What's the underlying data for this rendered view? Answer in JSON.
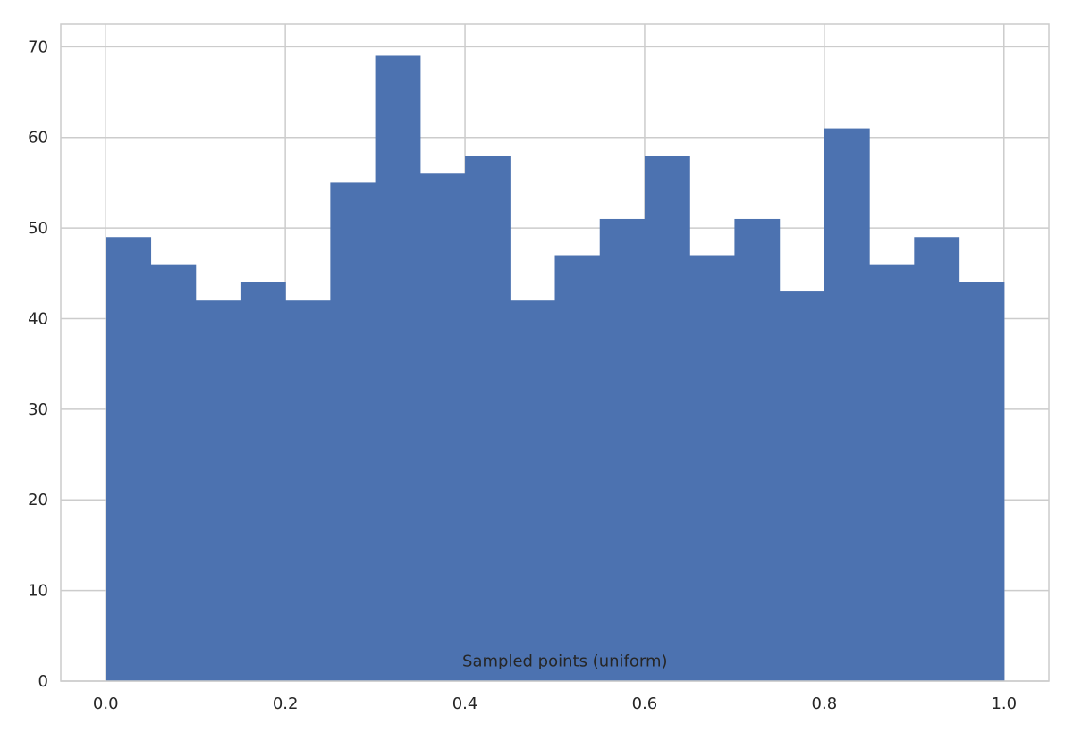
{
  "chart_data": {
    "type": "bar",
    "subtype": "histogram",
    "bin_edges": [
      0.0,
      0.05,
      0.1,
      0.15,
      0.2,
      0.25,
      0.3,
      0.35,
      0.4,
      0.45,
      0.5,
      0.55,
      0.6,
      0.65,
      0.7,
      0.75,
      0.8,
      0.85,
      0.9,
      0.95,
      1.0
    ],
    "values": [
      49,
      46,
      42,
      44,
      42,
      55,
      69,
      56,
      58,
      42,
      47,
      51,
      58,
      47,
      51,
      43,
      61,
      46,
      49,
      44
    ],
    "xlim": [
      -0.05,
      1.05
    ],
    "ylim": [
      0,
      72.5
    ],
    "x_ticks": [
      0.0,
      0.2,
      0.4,
      0.6,
      0.8,
      1.0
    ],
    "x_tick_labels": [
      "0.0",
      "0.2",
      "0.4",
      "0.6",
      "0.8",
      "1.0"
    ],
    "y_ticks": [
      0,
      10,
      20,
      30,
      40,
      50,
      60,
      70
    ],
    "y_tick_labels": [
      "0",
      "10",
      "20",
      "30",
      "40",
      "50",
      "60",
      "70"
    ],
    "grid": true,
    "annotation": {
      "text": "Sampled points (uniform)",
      "x": 0.4,
      "y": 2
    },
    "bar_color": "#4c72b0",
    "grid_color": "#cccccc",
    "frame_color": "#cccccc",
    "text_color": "#262626"
  }
}
